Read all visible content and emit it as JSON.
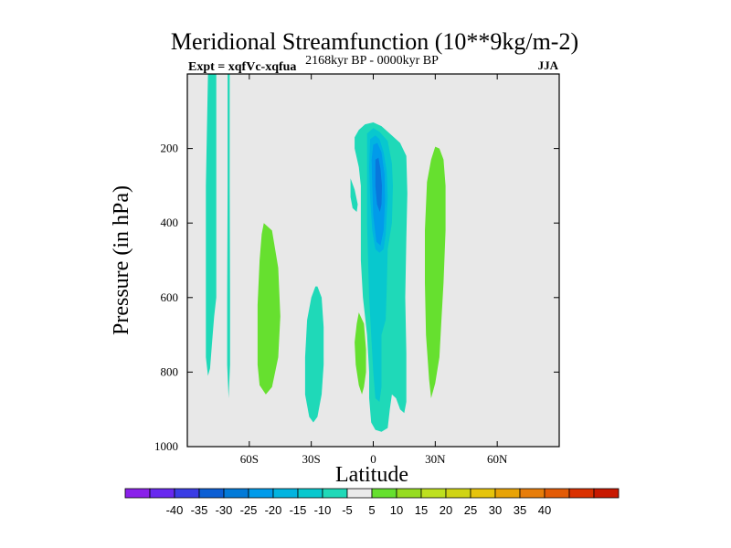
{
  "title": "Meridional Streamfunction (10**9kg/m-2)",
  "subtitle_left": "Expt = xqfVc-xqfua",
  "subtitle_center": "2168kyr BP - 0000kyr BP",
  "subtitle_right": "JJA",
  "chart_data": {
    "type": "contour",
    "title": "Meridional Streamfunction (10**9kg/m-2)",
    "xlabel": "Latitude",
    "ylabel": "Pressure (in hPa)",
    "xlim": [
      -90,
      90
    ],
    "ylim": [
      1000,
      0
    ],
    "xticks": [
      -60,
      -30,
      0,
      30,
      60
    ],
    "xtick_labels": [
      "60S",
      "30S",
      "0",
      "30N",
      "60N"
    ],
    "yticks": [
      200,
      400,
      600,
      800,
      1000
    ],
    "ytick_labels": [
      "200",
      "400",
      "600",
      "800",
      "1000"
    ],
    "background_color": "#e8e8e8",
    "regions": [
      {
        "name": "far-southern-negative-band",
        "level": -5,
        "color": "#1fd9b8",
        "points": [
          [
            -80,
            0
          ],
          [
            -76,
            0
          ],
          [
            -76,
            600
          ],
          [
            -77,
            650
          ],
          [
            -78,
            720
          ],
          [
            -79,
            790
          ],
          [
            -80,
            810
          ],
          [
            -81,
            760
          ],
          [
            -81,
            600
          ],
          [
            -81,
            300
          ]
        ]
      },
      {
        "name": "narrow-negative-band",
        "level": -5,
        "color": "#1fd9b8",
        "points": [
          [
            -70.5,
            0
          ],
          [
            -69.5,
            0
          ],
          [
            -69.5,
            300
          ],
          [
            -69.3,
            600
          ],
          [
            -69.3,
            780
          ],
          [
            -70,
            870
          ],
          [
            -70.7,
            780
          ],
          [
            -70.7,
            600
          ],
          [
            -70.5,
            300
          ]
        ]
      },
      {
        "name": "southern-positive-cell",
        "level": 5,
        "color": "#66e02f",
        "points": [
          [
            -53,
            400
          ],
          [
            -49,
            420
          ],
          [
            -46,
            520
          ],
          [
            -45,
            650
          ],
          [
            -46,
            760
          ],
          [
            -49,
            840
          ],
          [
            -52,
            860
          ],
          [
            -55,
            835
          ],
          [
            -56,
            780
          ],
          [
            -56,
            620
          ],
          [
            -55,
            500
          ],
          [
            -54,
            430
          ]
        ]
      },
      {
        "name": "subtropical-negative-cell",
        "level": -5,
        "color": "#1fd9b8",
        "points": [
          [
            -27,
            570
          ],
          [
            -25,
            600
          ],
          [
            -24,
            680
          ],
          [
            -24,
            780
          ],
          [
            -25,
            860
          ],
          [
            -27,
            920
          ],
          [
            -29,
            935
          ],
          [
            -31,
            920
          ],
          [
            -33,
            860
          ],
          [
            -33,
            760
          ],
          [
            -32,
            660
          ],
          [
            -30,
            600
          ],
          [
            -28,
            570
          ]
        ]
      },
      {
        "name": "upper-small-negative",
        "level": -5,
        "color": "#1fd9b8",
        "points": [
          [
            -11,
            280
          ],
          [
            -9,
            310
          ],
          [
            -7.5,
            350
          ],
          [
            -8,
            370
          ],
          [
            -10,
            360
          ],
          [
            -11,
            330
          ]
        ]
      },
      {
        "name": "lower-small-positive",
        "level": 5,
        "color": "#66e02f",
        "points": [
          [
            -7,
            640
          ],
          [
            -4.5,
            670
          ],
          [
            -3.5,
            740
          ],
          [
            -3.5,
            800
          ],
          [
            -4.5,
            840
          ],
          [
            -5.5,
            860
          ],
          [
            -7,
            835
          ],
          [
            -8.5,
            780
          ],
          [
            -9,
            720
          ],
          [
            -8,
            670
          ]
        ]
      },
      {
        "name": "equatorial-cell-level-5",
        "level": -5,
        "color": "#1fd9b8",
        "points": [
          [
            -7,
            150
          ],
          [
            -4,
            135
          ],
          [
            0,
            130
          ],
          [
            4,
            140
          ],
          [
            8,
            160
          ],
          [
            13,
            185
          ],
          [
            16,
            220
          ],
          [
            16.5,
            320
          ],
          [
            16,
            440
          ],
          [
            15.5,
            600
          ],
          [
            16,
            750
          ],
          [
            16,
            880
          ],
          [
            15,
            910
          ],
          [
            13,
            900
          ],
          [
            11,
            870
          ],
          [
            9,
            860
          ],
          [
            8,
            900
          ],
          [
            7,
            950
          ],
          [
            4,
            960
          ],
          [
            1,
            955
          ],
          [
            -1,
            935
          ],
          [
            -2,
            870
          ],
          [
            -2,
            800
          ],
          [
            -3,
            700
          ],
          [
            -5,
            600
          ],
          [
            -6,
            500
          ],
          [
            -6,
            400
          ],
          [
            -6,
            300
          ],
          [
            -7,
            250
          ],
          [
            -9,
            200
          ],
          [
            -9,
            170
          ]
        ]
      },
      {
        "name": "equatorial-cell-level-10",
        "level": -10,
        "color": "#08c8ce",
        "points": [
          [
            -3,
            160
          ],
          [
            0,
            145
          ],
          [
            3,
            155
          ],
          [
            7,
            180
          ],
          [
            9,
            240
          ],
          [
            9.5,
            300
          ],
          [
            9,
            400
          ],
          [
            7,
            470
          ],
          [
            6.5,
            580
          ],
          [
            6,
            660
          ],
          [
            4,
            700
          ],
          [
            4,
            760
          ],
          [
            4,
            840
          ],
          [
            3,
            880
          ],
          [
            1,
            870
          ],
          [
            0,
            800
          ],
          [
            -1,
            700
          ],
          [
            -2,
            600
          ],
          [
            -2.5,
            500
          ],
          [
            -3,
            400
          ],
          [
            -3,
            300
          ],
          [
            -3,
            220
          ]
        ]
      },
      {
        "name": "equatorial-cell-level-15",
        "level": -15,
        "color": "#02b4e0",
        "points": [
          [
            -1.5,
            175
          ],
          [
            1,
            165
          ],
          [
            3,
            175
          ],
          [
            5,
            210
          ],
          [
            6.5,
            260
          ],
          [
            7,
            330
          ],
          [
            6,
            430
          ],
          [
            5,
            470
          ],
          [
            3,
            480
          ],
          [
            1,
            470
          ],
          [
            -0.5,
            420
          ],
          [
            -1.5,
            330
          ],
          [
            -2,
            250
          ]
        ]
      },
      {
        "name": "equatorial-cell-level-20",
        "level": -20,
        "color": "#019bea",
        "points": [
          [
            0,
            190
          ],
          [
            2,
            185
          ],
          [
            4,
            210
          ],
          [
            5.5,
            270
          ],
          [
            5.7,
            340
          ],
          [
            5,
            420
          ],
          [
            3.5,
            460
          ],
          [
            1.5,
            450
          ],
          [
            0,
            380
          ],
          [
            -0.5,
            300
          ],
          [
            -0.8,
            230
          ]
        ]
      },
      {
        "name": "equatorial-cell-level-25",
        "level": -25,
        "color": "#0877dc",
        "points": [
          [
            1,
            230
          ],
          [
            2.5,
            225
          ],
          [
            3.5,
            255
          ],
          [
            4.2,
            300
          ],
          [
            4,
            350
          ],
          [
            3.2,
            370
          ],
          [
            1.8,
            350
          ],
          [
            1,
            300
          ]
        ]
      },
      {
        "name": "northern-positive-cell",
        "level": 5,
        "color": "#66e02f",
        "points": [
          [
            30,
            195
          ],
          [
            32,
            200
          ],
          [
            34,
            230
          ],
          [
            35,
            300
          ],
          [
            35,
            420
          ],
          [
            34,
            560
          ],
          [
            33,
            660
          ],
          [
            32,
            760
          ],
          [
            30,
            830
          ],
          [
            28,
            870
          ],
          [
            27,
            820
          ],
          [
            25.5,
            700
          ],
          [
            25,
            560
          ],
          [
            25,
            420
          ],
          [
            26,
            290
          ],
          [
            28,
            230
          ]
        ]
      }
    ],
    "colorbar": {
      "colors": [
        "#8a20ea",
        "#6828ef",
        "#3a3ce5",
        "#0c5ed4",
        "#027ad8",
        "#019bea",
        "#02b4e0",
        "#08c8ce",
        "#1fd9b8",
        "#eaeaea",
        "#66e02f",
        "#96dc20",
        "#bee01f",
        "#d0d414",
        "#e6c40c",
        "#e8a306",
        "#e77d0a",
        "#e35b06",
        "#da3000",
        "#c81800"
      ],
      "labels": [
        "-40",
        "-35",
        "-30",
        "-25",
        "-20",
        "-15",
        "-10",
        "-5",
        "5",
        "10",
        "15",
        "20",
        "25",
        "30",
        "35",
        "40"
      ]
    }
  }
}
